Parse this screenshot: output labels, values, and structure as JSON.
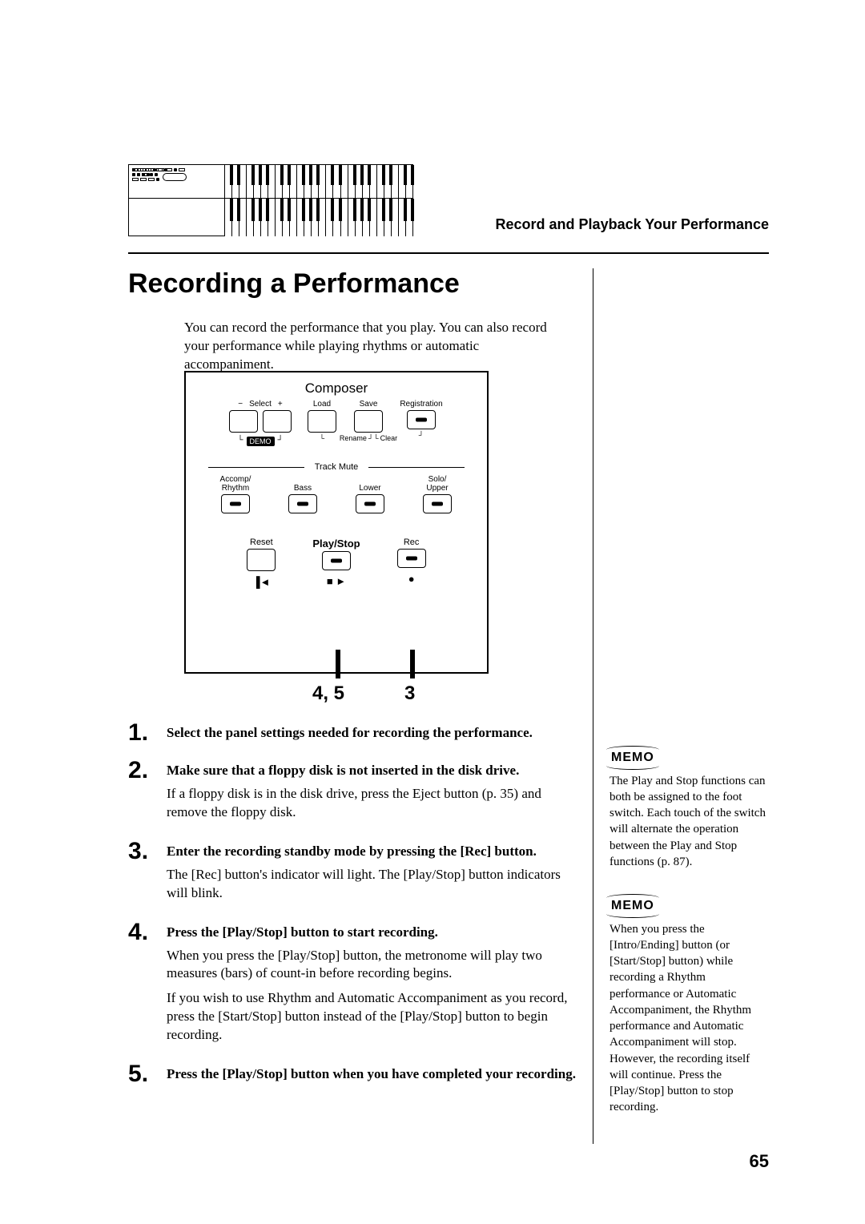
{
  "header": {
    "right": "Record and Playback Your Performance"
  },
  "section_title": "Recording a Performance",
  "intro": "You can record the performance that you play. You can also record your performance while playing rhythms or automatic accompaniment.",
  "composer": {
    "title": "Composer",
    "select": "Select",
    "minus": "−",
    "plus": "+",
    "load": "Load",
    "save": "Save",
    "registration": "Registration",
    "demo": "DEMO",
    "rename": "Rename",
    "clear": "Clear",
    "track_mute": "Track Mute",
    "accomp_rhythm_1": "Accomp/",
    "accomp_rhythm_2": "Rhythm",
    "bass": "Bass",
    "lower": "Lower",
    "solo_upper_1": "Solo/",
    "solo_upper_2": "Upper",
    "reset": "Reset",
    "play_stop": "Play/Stop",
    "rec": "Rec",
    "reset_sym": "▐◄",
    "play_sym": "■ ►",
    "rec_sym": "●"
  },
  "callouts": {
    "play": "4, 5",
    "rec": "3"
  },
  "steps": [
    {
      "n": "1",
      "head": "Select the panel settings needed for recording the performance.",
      "body": []
    },
    {
      "n": "2",
      "head": "Make sure that a floppy disk is not inserted in the disk drive.",
      "body": [
        "If a floppy disk is in the disk drive, press the Eject button (p. 35) and remove the floppy disk."
      ]
    },
    {
      "n": "3",
      "head": "Enter the recording standby mode by pressing the [Rec] button.",
      "body": [
        "The [Rec] button's indicator will light. The [Play/Stop] button indicators will blink."
      ]
    },
    {
      "n": "4",
      "head": "Press the [Play/Stop] button to start recording.",
      "body": [
        "When you press the [Play/Stop] button, the metronome will play two measures (bars) of count-in before recording begins.",
        "If you wish to use Rhythm and Automatic Accompaniment as you record, press the [Start/Stop] button instead of the [Play/Stop] button to begin recording."
      ]
    },
    {
      "n": "5",
      "head": "Press the [Play/Stop] button when you have completed your recording.",
      "body": []
    }
  ],
  "memo": {
    "label": "MEMO",
    "m1": "The Play and Stop functions can both be assigned to the foot switch. Each touch of the switch will alternate the operation between the Play and Stop functions (p. 87).",
    "m2": "When you press the [Intro/Ending] button (or [Start/Stop] button) while recording a Rhythm performance or Automatic Accompaniment, the Rhythm performance and Automatic Accompaniment will stop. However, the recording itself will continue. Press the [Play/Stop] button to stop recording."
  },
  "page_number": "65"
}
